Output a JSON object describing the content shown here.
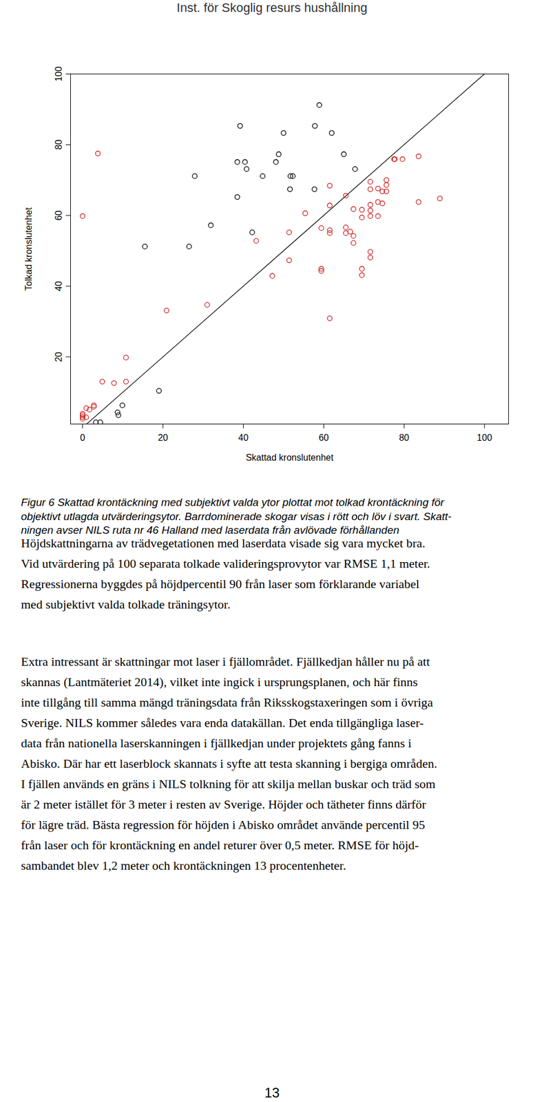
{
  "header": "Inst. för Skoglig resurs hushållning",
  "chart_data": {
    "type": "scatter",
    "xlabel": "Skattad kronslutenhet",
    "ylabel": "Tolkad kronslutenhet",
    "xlim": [
      -3,
      106
    ],
    "ylim": [
      1,
      100
    ],
    "xticks": [
      0,
      20,
      40,
      60,
      80,
      100
    ],
    "yticks": [
      20,
      40,
      60,
      80,
      100
    ],
    "marker": "open_circle",
    "series": [
      {
        "color": "#cc2222",
        "marker": "open_circle",
        "x": [
          0,
          0,
          0,
          0,
          0.9,
          0.9,
          1.7,
          2.8,
          2.8,
          0,
          3.8,
          4.9,
          7.8,
          10.8,
          10.8,
          20.9,
          31,
          43.2,
          47.2,
          51.4,
          51.4,
          55.4,
          59.4,
          59.4,
          59.4,
          61.5,
          61.5,
          61.5,
          61.5,
          61.5,
          65.5,
          65.5,
          65.5,
          66.6,
          67.4,
          67.4,
          67.4,
          69.5,
          69.5,
          69.5,
          69.5,
          71.6,
          71.6,
          71.6,
          71.6,
          71.6,
          71.6,
          71.6,
          73.5,
          73.5,
          73.5,
          74.6,
          74.6,
          75.6,
          75.6,
          75.6,
          77.5,
          77.7,
          79.6,
          83.6,
          83.6,
          88.9
        ],
        "y": [
          3,
          2.5,
          3.5,
          3.9,
          2.9,
          5.5,
          5.1,
          5.9,
          6.3,
          59.8,
          77.5,
          13,
          12.6,
          13,
          19.8,
          33.1,
          34.7,
          52.8,
          42.9,
          55.2,
          47.3,
          60.6,
          56.4,
          44.9,
          44.3,
          68.4,
          62.8,
          55.8,
          55,
          30.9,
          65.6,
          56.6,
          55,
          55.4,
          61.8,
          54.2,
          52.2,
          61.6,
          59.4,
          44.9,
          43.1,
          69.5,
          67.4,
          63,
          61.4,
          59.8,
          49.7,
          48.1,
          67.6,
          63.8,
          59.8,
          63.4,
          66.8,
          70,
          68.6,
          66.8,
          75.9,
          75.9,
          75.9,
          76.7,
          63.8,
          64.8
        ]
      },
      {
        "color": "#000000",
        "marker": "open_circle",
        "x": [
          4.4,
          3.3,
          8.9,
          8.7,
          9.9,
          19,
          15.5,
          26.5,
          27.9,
          31.9,
          38.5,
          39.2,
          38.5,
          40.4,
          40.8,
          42.2,
          44.8,
          48.1,
          48.8,
          50,
          51.7,
          52.3,
          51.6,
          57.8,
          58.9,
          57.7,
          62,
          65,
          67.8
        ],
        "y": [
          1.5,
          1.5,
          3.5,
          4.3,
          6.3,
          10.4,
          51.2,
          51.2,
          71.1,
          57.2,
          75.1,
          85.3,
          65.2,
          75.1,
          73.1,
          55.2,
          71.1,
          75.1,
          77.3,
          83.3,
          71.1,
          71.1,
          67.4,
          85.3,
          91.2,
          67.4,
          83.3,
          77.3,
          73.1
        ]
      }
    ],
    "reference_line": {
      "color": "#000000",
      "x": [
        0,
        100
      ],
      "y": [
        0,
        100
      ]
    }
  },
  "caption": [
    "Figur 6 Skattad krontäckning med subjektivt valda ytor plottat mot tolkad krontäckning för",
    "objektivt utlagda utvärderingsytor. Barrdominerade skogar visas i rött och löv i svart. Skatt-",
    "ningen avser NILS ruta nr 46 Halland med laserdata från avlövade förhållanden"
  ],
  "paragraphs": [
    [
      "Höjdskattningarna av trädvegetationen med laserdata visade sig vara mycket bra.",
      "Vid utvärdering på 100 separata tolkade valideringsprovytor var RMSE 1,1 meter.",
      "Regressionerna byggdes på höjdpercentil 90 från laser som förklarande variabel",
      "med subjektivt valda tolkade träningsytor."
    ],
    [
      "Extra intressant är skattningar mot laser i fjällområdet. Fjällkedjan håller nu på att",
      "skannas (Lantmäteriet 2014), vilket inte ingick i ursprungsplanen, och här finns",
      "inte tillgång till samma mängd träningsdata från Riksskogstaxeringen som i övriga",
      "Sverige. NILS kommer således vara enda datakällan. Det enda tillgängliga laser-",
      "data från nationella laserskanningen i fjällkedjan under projektets gång fanns i",
      "Abisko. Där har ett laserblock skannats i syfte att testa skanning i bergiga områden.",
      "I fjällen används en gräns i NILS tolkning för att skilja mellan buskar och träd som",
      "är 2 meter istället för 3 meter i resten av Sverige. Höjder och tätheter finns därför",
      "för lägre träd. Bästa regression för höjden i Abisko området använde percentil 95",
      "från laser och för krontäckning en andel returer över 0,5 meter. RMSE för höjd-",
      "sambandet blev 1,2 meter och krontäckningen 13 procentenheter."
    ]
  ],
  "page_number": 13
}
